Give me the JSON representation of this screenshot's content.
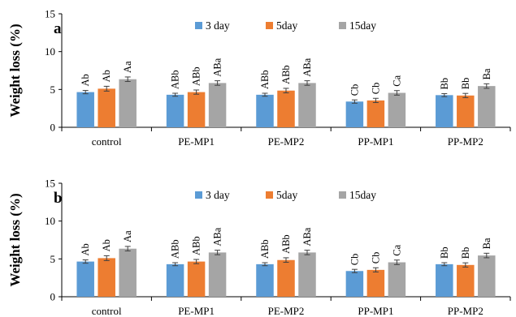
{
  "chart_data": [
    {
      "type": "bar",
      "panel_label": "a",
      "ylabel": "Weight loss (%)",
      "ylim": [
        0,
        15
      ],
      "yticks": [
        0,
        5,
        10,
        15
      ],
      "grid": false,
      "legend_position": "top-center",
      "categories": [
        "control",
        "PE-MP1",
        "PE-MP2",
        "PP-MP1",
        "PP-MP2"
      ],
      "series": [
        {
          "name": "3 day",
          "color": "#5b9bd5",
          "values": [
            4.65,
            4.3,
            4.3,
            3.4,
            4.25
          ],
          "errors": [
            0.22,
            0.2,
            0.2,
            0.22,
            0.2
          ],
          "labels": [
            "Ab",
            "ABb",
            "ABb",
            "Cb",
            "Bb"
          ]
        },
        {
          "name": "5day",
          "color": "#ed7d31",
          "values": [
            5.1,
            4.65,
            4.85,
            3.55,
            4.2
          ],
          "errors": [
            0.32,
            0.28,
            0.3,
            0.28,
            0.28
          ],
          "labels": [
            "Ab",
            "ABb",
            "ABb",
            "Cb",
            "Bb"
          ]
        },
        {
          "name": "15day",
          "color": "#a5a5a5",
          "values": [
            6.35,
            5.85,
            5.85,
            4.55,
            5.45
          ],
          "errors": [
            0.3,
            0.3,
            0.3,
            0.3,
            0.3
          ],
          "labels": [
            "Aa",
            "ABa",
            "ABa",
            "Ca",
            "Ba"
          ]
        }
      ]
    },
    {
      "type": "bar",
      "panel_label": "b",
      "ylabel": "Weight loss (%)",
      "ylim": [
        0,
        15
      ],
      "yticks": [
        0,
        5,
        10,
        15
      ],
      "grid": false,
      "legend_position": "top-center",
      "categories": [
        "control",
        "PE-MP1",
        "PE-MP2",
        "PP-MP1",
        "PP-MP2"
      ],
      "series": [
        {
          "name": "3 day",
          "color": "#5b9bd5",
          "values": [
            4.65,
            4.3,
            4.3,
            3.4,
            4.3
          ],
          "errors": [
            0.22,
            0.2,
            0.2,
            0.22,
            0.2
          ],
          "labels": [
            "Ab",
            "ABb",
            "ABb",
            "Cb",
            "Bb"
          ]
        },
        {
          "name": "5day",
          "color": "#ed7d31",
          "values": [
            5.1,
            4.65,
            4.85,
            3.55,
            4.2
          ],
          "errors": [
            0.32,
            0.28,
            0.3,
            0.28,
            0.28
          ],
          "labels": [
            "Ab",
            "ABb",
            "ABb",
            "Cb",
            "Bb"
          ]
        },
        {
          "name": "15day",
          "color": "#a5a5a5",
          "values": [
            6.35,
            5.85,
            5.85,
            4.55,
            5.45
          ],
          "errors": [
            0.3,
            0.3,
            0.3,
            0.3,
            0.3
          ],
          "labels": [
            "Aa",
            "ABa",
            "ABa",
            "Ca",
            "Ba"
          ]
        }
      ]
    }
  ]
}
